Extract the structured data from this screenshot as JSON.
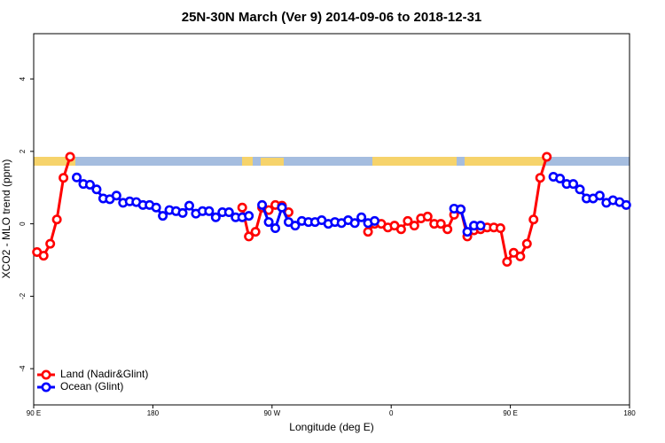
{
  "chart_data": {
    "type": "line",
    "title": "25N-30N March (Ver 9)   2014-09-06 to 2018-12-31",
    "xlabel": "Longitude (deg E)",
    "ylabel": "XCO2 - MLO trend (ppm)",
    "x": [
      92.5,
      97.5,
      102.5,
      107.5,
      112.5,
      117.5,
      122.5,
      127.5,
      132.5,
      137.5,
      142.5,
      147.5,
      152.5,
      157.5,
      162.5,
      167.5,
      172.5,
      177.5,
      182.5,
      187.5,
      192.5,
      197.5,
      202.5,
      207.5,
      212.5,
      217.5,
      222.5,
      227.5,
      232.5,
      237.5,
      242.5,
      247.5,
      252.5,
      257.5,
      262.5,
      267.5,
      272.5,
      277.5,
      282.5,
      287.5,
      292.5,
      297.5,
      302.5,
      307.5,
      312.5,
      317.5,
      322.5,
      327.5,
      332.5,
      337.5,
      342.5,
      347.5,
      352.5,
      357.5,
      362.5,
      367.5,
      372.5,
      377.5,
      382.5,
      387.5,
      392.5,
      397.5,
      402.5,
      407.5,
      412.5,
      417.5,
      422.5,
      427.5,
      432.5,
      437.5,
      442.5,
      447.5,
      452.5,
      457.5,
      462.5,
      467.5,
      472.5,
      477.5,
      482.5,
      487.5,
      492.5,
      497.5,
      502.5,
      507.5,
      512.5,
      517.5,
      522.5,
      527.5,
      532.5,
      537.5
    ],
    "series": [
      {
        "name": "Land (Nadir&Glint)",
        "color": "#ff0000",
        "values": [
          -0.78,
          -0.88,
          -0.55,
          0.12,
          1.27,
          1.85,
          null,
          null,
          null,
          null,
          null,
          null,
          null,
          null,
          null,
          null,
          null,
          null,
          null,
          null,
          null,
          null,
          null,
          null,
          null,
          null,
          null,
          null,
          null,
          null,
          null,
          0.45,
          -0.35,
          -0.22,
          0.45,
          0.38,
          0.52,
          0.5,
          0.32,
          null,
          null,
          null,
          null,
          null,
          null,
          null,
          null,
          null,
          null,
          null,
          -0.22,
          0.0,
          0.0,
          -0.1,
          -0.05,
          -0.15,
          0.08,
          -0.05,
          0.15,
          0.2,
          0.0,
          0.0,
          -0.15,
          0.25,
          0.4,
          -0.35,
          -0.18,
          -0.15,
          -0.1,
          -0.1,
          -0.12,
          -1.05,
          -0.8,
          -0.9,
          -0.55,
          0.12,
          1.27,
          1.85,
          null,
          null,
          null,
          null,
          null,
          null,
          null,
          null,
          null,
          null,
          null,
          null
        ]
      },
      {
        "name": "Ocean (Glint)",
        "color": "#0000ff",
        "values": [
          null,
          null,
          null,
          null,
          null,
          null,
          1.28,
          1.1,
          1.08,
          0.95,
          0.7,
          0.68,
          0.78,
          0.58,
          0.62,
          0.6,
          0.52,
          0.52,
          0.45,
          0.22,
          0.38,
          0.35,
          0.3,
          0.5,
          0.28,
          0.35,
          0.35,
          0.18,
          0.32,
          0.32,
          0.18,
          0.18,
          0.22,
          null,
          0.52,
          0.05,
          -0.12,
          0.45,
          0.05,
          -0.05,
          0.08,
          0.05,
          0.05,
          0.1,
          0.0,
          0.05,
          0.02,
          0.1,
          0.02,
          0.18,
          0.02,
          0.08,
          null,
          null,
          null,
          null,
          null,
          null,
          null,
          null,
          null,
          null,
          null,
          0.42,
          0.4,
          -0.22,
          -0.05,
          -0.05,
          null,
          null,
          null,
          null,
          null,
          null,
          null,
          null,
          null,
          null,
          1.3,
          1.25,
          1.1,
          1.1,
          0.95,
          0.7,
          0.7,
          0.78,
          0.58,
          0.65,
          0.6,
          0.52
        ]
      }
    ],
    "xlim": [
      90,
      540
    ],
    "xticks": [
      {
        "value": 90,
        "label": "90 E"
      },
      180,
      {
        "value": 270,
        "label": "90 W"
      },
      {
        "value": 360,
        "label": "0"
      },
      {
        "value": 450,
        "label": "90 E"
      },
      {
        "value": 540,
        "label": "180"
      }
    ],
    "ylim": [
      -5,
      5.25
    ],
    "yticks": [
      -4,
      -2,
      0,
      2,
      4
    ],
    "legend": "bottom-left"
  }
}
